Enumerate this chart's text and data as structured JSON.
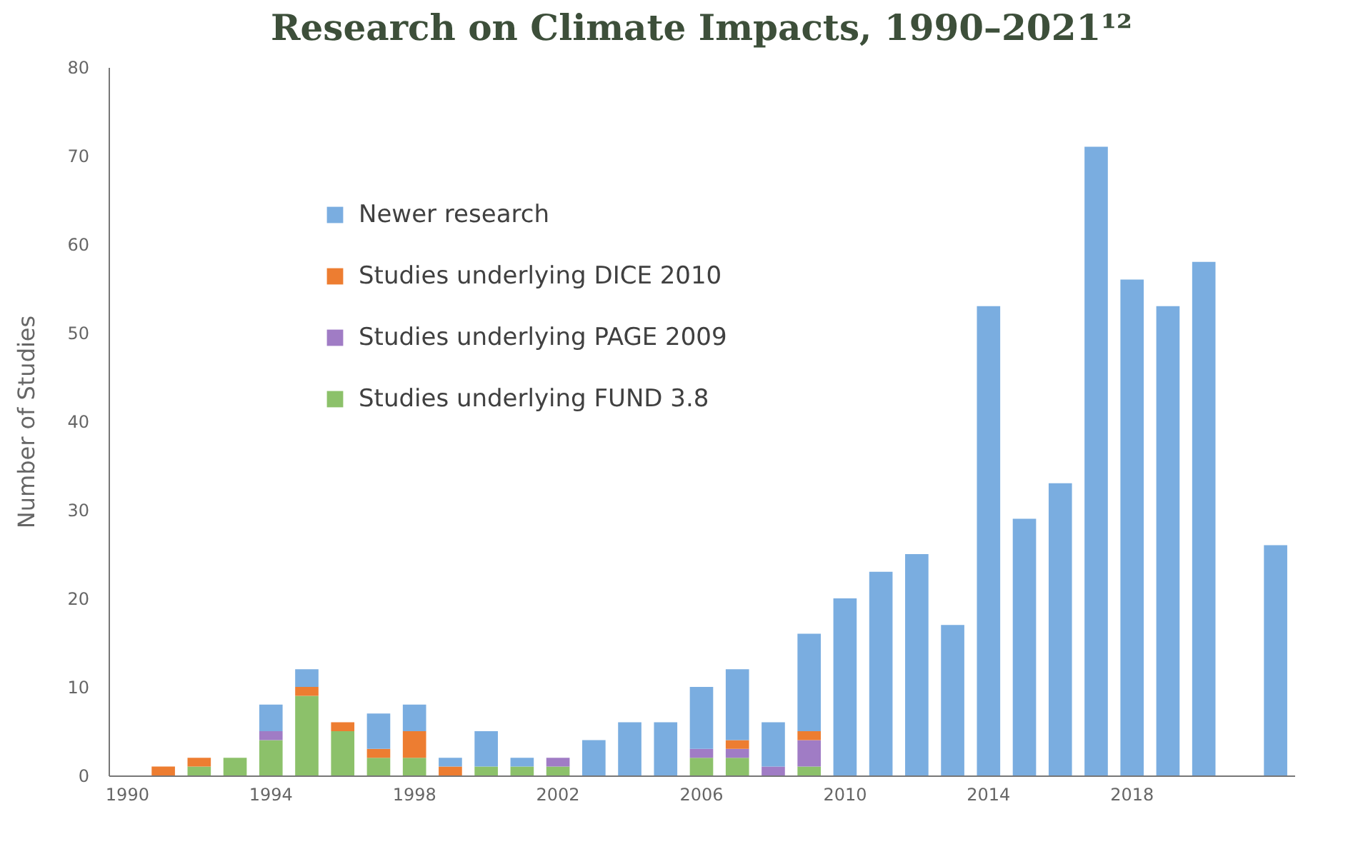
{
  "chart_data": {
    "type": "bar",
    "title": "Research on Climate Impacts, 1990–2021¹²",
    "ylabel": "Number of Studies",
    "categories": [
      "1990",
      null,
      null,
      null,
      "1994",
      null,
      null,
      null,
      "1998",
      null,
      null,
      null,
      "2002",
      null,
      null,
      null,
      "2006",
      null,
      null,
      null,
      "2010",
      null,
      null,
      null,
      "2014",
      null,
      null,
      null,
      "2018",
      null,
      null,
      null,
      null
    ],
    "series": [
      {
        "name": "Studies underlying FUND 3.8",
        "color": "#8cc16a",
        "values": [
          null,
          0,
          1,
          2,
          4,
          9,
          5,
          2,
          2,
          0,
          1,
          1,
          1,
          0,
          0,
          0,
          2,
          2,
          0,
          1,
          0,
          0,
          0,
          0,
          0,
          0,
          0,
          0,
          0,
          0,
          0,
          null,
          0
        ]
      },
      {
        "name": "Studies underlying PAGE 2009",
        "color": "#a07cc5",
        "values": [
          null,
          0,
          0,
          0,
          1,
          0,
          0,
          0,
          0,
          0,
          0,
          0,
          1,
          0,
          0,
          0,
          1,
          1,
          1,
          3,
          0,
          0,
          0,
          0,
          0,
          0,
          0,
          0,
          0,
          0,
          0,
          null,
          0
        ]
      },
      {
        "name": "Studies underlying DICE 2010",
        "color": "#ed7d31",
        "values": [
          null,
          1,
          1,
          0,
          0,
          1,
          1,
          1,
          3,
          1,
          0,
          0,
          0,
          0,
          0,
          0,
          0,
          1,
          0,
          1,
          0,
          0,
          0,
          0,
          0,
          0,
          0,
          0,
          0,
          0,
          0,
          null,
          0
        ]
      },
      {
        "name": "Newer research",
        "color": "#7aade0",
        "values": [
          null,
          0,
          0,
          0,
          3,
          2,
          0,
          4,
          3,
          1,
          4,
          1,
          0,
          4,
          6,
          6,
          7,
          8,
          5,
          11,
          20,
          23,
          25,
          17,
          53,
          29,
          33,
          71,
          56,
          53,
          58,
          null,
          26
        ]
      }
    ],
    "stacked": true,
    "ylim": [
      0,
      80
    ],
    "yticks": [
      0,
      10,
      20,
      30,
      40,
      50,
      60,
      70,
      80
    ],
    "grid": false,
    "legend": "top left"
  }
}
